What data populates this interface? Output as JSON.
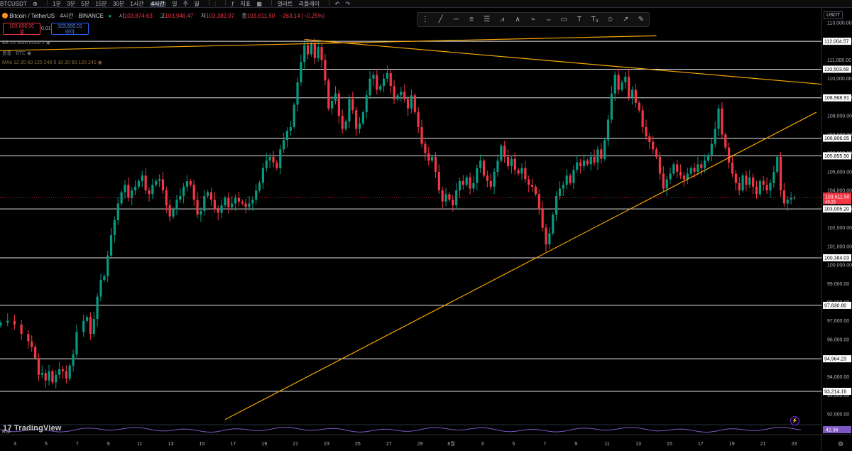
{
  "topbar": {
    "symbol": "BTCUSDT",
    "intervals": [
      "1분",
      "3분",
      "5분",
      "15분",
      "30분",
      "1시간",
      "4시간",
      "일",
      "주",
      "월"
    ],
    "active_interval": "4시간",
    "indicators": "지표",
    "alerts": "얼러트",
    "replay": "리플레이"
  },
  "legend": {
    "title": "Bitcoin / TetherUS · 4시간 · BINANCE",
    "open_label": "시",
    "open": "103,874.63",
    "high_label": "고",
    "high": "103,946.47",
    "low_label": "저",
    "low": "103,382.97",
    "close_label": "종",
    "close": "103,611.50",
    "change": "−263.14 (−0.25%)"
  },
  "order": {
    "sell_price": "103,600.00",
    "sell_label": "셀",
    "spread": "0.01",
    "buy_price": "103,600.01",
    "buy_label": "바이"
  },
  "indicators": {
    "bb": "BB 20 SMA close 2",
    "vol": "볼륨 · BTC",
    "mas": "MAs 12 20 60 120 240 5 10 20 60 120 240"
  },
  "currency": "USDT",
  "drawing_toolbar": {
    "icons": [
      "drag-handle-icon",
      "trendline-icon",
      "horizontal-line-icon",
      "parallel-channel-icon",
      "fib-retracement-icon",
      "pitchfork-icon",
      "xabcd-pattern-icon",
      "elliott-wave-icon",
      "measure-icon",
      "rectangle-icon",
      "text-icon",
      "price-label-icon",
      "emoji-icon",
      "path-icon",
      "brush-icon"
    ],
    "glyphs": [
      "⋮",
      "╱",
      "─",
      "≡",
      "☰",
      "⩘",
      "∧",
      "⌁",
      "⇔",
      "▭",
      "T",
      "T₃",
      "☺",
      "↗",
      "✎"
    ]
  },
  "chart_data": {
    "type": "candlestick",
    "symbol": "BTCUSDT",
    "ylim": [
      91500,
      113800
    ],
    "price_axis_ticks": [
      "113,000.00",
      "112,000.00",
      "111,000.00",
      "110,000.00",
      "109,000.00",
      "108,000.00",
      "107,000.00",
      "106,000.00",
      "105,000.00",
      "104,000.00",
      "103,000.00",
      "102,000.00",
      "101,000.00",
      "100,000.00",
      "99,000.00",
      "98,000.00",
      "97,000.00",
      "96,000.00",
      "95,000.00",
      "94,000.00",
      "93,000.00",
      "92,000.00"
    ],
    "time_axis_labels": [
      "3",
      "5",
      "7",
      "9",
      "11",
      "13",
      "15",
      "17",
      "19",
      "21",
      "23",
      "25",
      "27",
      "29",
      "6월",
      "3",
      "5",
      "7",
      "9",
      "11",
      "13",
      "15",
      "17",
      "19",
      "21",
      "23"
    ],
    "horizontal_levels": [
      {
        "price": 112004.57,
        "label": "112,004.57"
      },
      {
        "price": 110503.69,
        "label": "110,503.69"
      },
      {
        "price": 108968.91,
        "label": "108,968.91"
      },
      {
        "price": 106806.05,
        "label": "106,806.05"
      },
      {
        "price": 105855.5,
        "label": "105,855.50"
      },
      {
        "price": 103005.2,
        "label": "103,005.20"
      },
      {
        "price": 100384.03,
        "label": "100,384.03"
      },
      {
        "price": 97830.8,
        "label": "97,830.80"
      },
      {
        "price": 94964.23,
        "label": "94,964.23"
      },
      {
        "price": 93214.16,
        "label": "93,214.16"
      }
    ],
    "current_price": {
      "price": 103611.5,
      "label": "103,611.50",
      "countdown": "49:26"
    },
    "candle_color_up": "#089981",
    "candle_color_down": "#f23645",
    "trendline_color": "#f7a600",
    "rsi": {
      "label": "RSI",
      "value": "42.36"
    },
    "close_path": [
      [
        0,
        96900
      ],
      [
        2,
        97000
      ],
      [
        4,
        96800
      ],
      [
        6,
        96300
      ],
      [
        8,
        95900
      ],
      [
        9,
        95600
      ],
      [
        10,
        95000
      ],
      [
        11,
        94100
      ],
      [
        12,
        94200
      ],
      [
        13,
        93800
      ],
      [
        14,
        94300
      ],
      [
        15,
        93700
      ],
      [
        16,
        94100
      ],
      [
        17,
        94400
      ],
      [
        18,
        94300
      ],
      [
        19,
        93900
      ],
      [
        20,
        94600
      ],
      [
        21,
        95200
      ],
      [
        22,
        96400
      ],
      [
        24,
        97000
      ],
      [
        25,
        97200
      ],
      [
        26,
        96300
      ],
      [
        27,
        97100
      ],
      [
        28,
        98300
      ],
      [
        29,
        99200
      ],
      [
        30,
        99400
      ],
      [
        31,
        100500
      ],
      [
        32,
        101600
      ],
      [
        33,
        102400
      ],
      [
        34,
        103300
      ],
      [
        35,
        103900
      ],
      [
        36,
        104300
      ],
      [
        37,
        103600
      ],
      [
        38,
        104000
      ],
      [
        39,
        104200
      ],
      [
        40,
        104500
      ],
      [
        41,
        104800
      ],
      [
        42,
        104000
      ],
      [
        43,
        103800
      ],
      [
        44,
        104300
      ],
      [
        45,
        104500
      ],
      [
        46,
        104600
      ],
      [
        47,
        104000
      ],
      [
        48,
        103200
      ],
      [
        49,
        102600
      ],
      [
        50,
        103000
      ],
      [
        51,
        103500
      ],
      [
        52,
        103700
      ],
      [
        53,
        104200
      ],
      [
        54,
        104500
      ],
      [
        55,
        104300
      ],
      [
        56,
        103500
      ],
      [
        57,
        102700
      ],
      [
        58,
        102900
      ],
      [
        59,
        103700
      ],
      [
        60,
        103900
      ],
      [
        61,
        103500
      ],
      [
        62,
        103000
      ],
      [
        63,
        102800
      ],
      [
        64,
        103200
      ],
      [
        65,
        103600
      ],
      [
        66,
        103100
      ],
      [
        67,
        103300
      ],
      [
        68,
        103600
      ],
      [
        69,
        103400
      ],
      [
        70,
        103300
      ],
      [
        71,
        103100
      ],
      [
        72,
        103300
      ],
      [
        73,
        103500
      ],
      [
        74,
        104000
      ],
      [
        75,
        104400
      ],
      [
        76,
        105200
      ],
      [
        77,
        105600
      ],
      [
        78,
        105800
      ],
      [
        79,
        105500
      ],
      [
        80,
        105200
      ],
      [
        81,
        106200
      ],
      [
        82,
        106700
      ],
      [
        83,
        107200
      ],
      [
        84,
        107400
      ],
      [
        85,
        108600
      ],
      [
        86,
        109800
      ],
      [
        87,
        110900
      ],
      [
        88,
        111800
      ],
      [
        89,
        111300
      ],
      [
        90,
        111900
      ],
      [
        91,
        111100
      ],
      [
        92,
        111700
      ],
      [
        93,
        111000
      ],
      [
        94,
        109900
      ],
      [
        95,
        108400
      ],
      [
        96,
        108800
      ],
      [
        97,
        109200
      ],
      [
        98,
        108000
      ],
      [
        99,
        107300
      ],
      [
        100,
        107700
      ],
      [
        101,
        108900
      ],
      [
        102,
        108300
      ],
      [
        103,
        107300
      ],
      [
        104,
        107600
      ],
      [
        105,
        108200
      ],
      [
        106,
        109100
      ],
      [
        107,
        110000
      ],
      [
        108,
        110200
      ],
      [
        109,
        109400
      ],
      [
        110,
        109600
      ],
      [
        111,
        110000
      ],
      [
        112,
        110300
      ],
      [
        113,
        109600
      ],
      [
        114,
        108900
      ],
      [
        115,
        109100
      ],
      [
        116,
        109300
      ],
      [
        117,
        108900
      ],
      [
        118,
        108400
      ],
      [
        119,
        109100
      ],
      [
        120,
        108200
      ],
      [
        121,
        107400
      ],
      [
        122,
        106500
      ],
      [
        123,
        106000
      ],
      [
        124,
        105600
      ],
      [
        125,
        105800
      ],
      [
        126,
        105000
      ],
      [
        127,
        104000
      ],
      [
        128,
        103400
      ],
      [
        129,
        103800
      ],
      [
        130,
        103500
      ],
      [
        131,
        103200
      ],
      [
        132,
        104000
      ],
      [
        133,
        104500
      ],
      [
        134,
        104300
      ],
      [
        135,
        104700
      ],
      [
        136,
        104100
      ],
      [
        137,
        104400
      ],
      [
        138,
        105200
      ],
      [
        139,
        105600
      ],
      [
        140,
        104800
      ],
      [
        141,
        104500
      ],
      [
        142,
        104200
      ],
      [
        143,
        105000
      ],
      [
        144,
        105600
      ],
      [
        145,
        106400
      ],
      [
        146,
        105800
      ],
      [
        147,
        105300
      ],
      [
        148,
        105700
      ],
      [
        149,
        105100
      ],
      [
        150,
        104900
      ],
      [
        151,
        105200
      ],
      [
        152,
        104600
      ],
      [
        153,
        104300
      ],
      [
        154,
        104200
      ],
      [
        155,
        103800
      ],
      [
        156,
        103000
      ],
      [
        157,
        102000
      ],
      [
        158,
        101100
      ],
      [
        159,
        101700
      ],
      [
        160,
        102700
      ],
      [
        161,
        103700
      ],
      [
        162,
        104100
      ],
      [
        163,
        104300
      ],
      [
        164,
        104800
      ],
      [
        165,
        104400
      ],
      [
        166,
        105100
      ],
      [
        167,
        105500
      ],
      [
        168,
        105300
      ],
      [
        169,
        105600
      ],
      [
        170,
        105400
      ],
      [
        171,
        105800
      ],
      [
        172,
        105500
      ],
      [
        173,
        106200
      ],
      [
        174,
        105700
      ],
      [
        175,
        106700
      ],
      [
        176,
        107800
      ],
      [
        177,
        109200
      ],
      [
        178,
        110200
      ],
      [
        179,
        109400
      ],
      [
        180,
        109800
      ],
      [
        181,
        110100
      ],
      [
        182,
        109000
      ],
      [
        183,
        109400
      ],
      [
        184,
        108700
      ],
      [
        185,
        108300
      ],
      [
        186,
        107400
      ],
      [
        187,
        106900
      ],
      [
        188,
        106600
      ],
      [
        189,
        106200
      ],
      [
        190,
        105800
      ],
      [
        191,
        104900
      ],
      [
        192,
        104100
      ],
      [
        193,
        104600
      ],
      [
        194,
        104900
      ],
      [
        195,
        105400
      ],
      [
        196,
        105000
      ],
      [
        197,
        104800
      ],
      [
        198,
        104600
      ],
      [
        199,
        104900
      ],
      [
        200,
        105200
      ],
      [
        201,
        105000
      ],
      [
        202,
        105400
      ],
      [
        203,
        105200
      ],
      [
        204,
        105600
      ],
      [
        205,
        105900
      ],
      [
        206,
        106500
      ],
      [
        207,
        107300
      ],
      [
        208,
        108400
      ],
      [
        209,
        107000
      ],
      [
        210,
        106300
      ],
      [
        211,
        105500
      ],
      [
        212,
        104900
      ],
      [
        213,
        104400
      ],
      [
        214,
        104000
      ],
      [
        215,
        104800
      ],
      [
        216,
        104300
      ],
      [
        217,
        104700
      ],
      [
        218,
        104200
      ],
      [
        219,
        103800
      ],
      [
        220,
        104500
      ],
      [
        221,
        104300
      ],
      [
        222,
        104000
      ],
      [
        223,
        104400
      ],
      [
        224,
        105000
      ],
      [
        225,
        105800
      ],
      [
        226,
        104000
      ],
      [
        227,
        103300
      ],
      [
        228,
        103500
      ],
      [
        229,
        103600
      ],
      [
        230,
        103612
      ]
    ]
  }
}
